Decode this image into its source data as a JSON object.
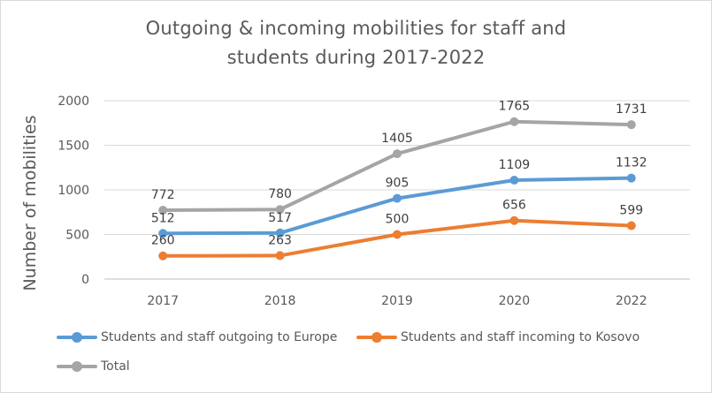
{
  "chart_data": {
    "type": "line",
    "title_lines": [
      "Outgoing & incoming mobilities for staff and",
      "students during 2017-2022"
    ],
    "xlabel": "",
    "ylabel": "Number of mobilities",
    "categories": [
      "2017",
      "2018",
      "2019",
      "2020",
      "2022"
    ],
    "ylim": [
      0,
      2000
    ],
    "yticks": [
      0,
      500,
      1000,
      1500,
      2000
    ],
    "grid": true,
    "legend_position": "bottom",
    "series": [
      {
        "name": "Students and staff outgoing to Europe",
        "color": "#5b9bd5",
        "values": [
          512,
          517,
          905,
          1109,
          1132
        ]
      },
      {
        "name": "Students and staff incoming to Kosovo",
        "color": "#ed7d31",
        "values": [
          260,
          263,
          500,
          656,
          599
        ]
      },
      {
        "name": "Total",
        "color": "#a5a5a5",
        "values": [
          772,
          780,
          1405,
          1765,
          1731
        ]
      }
    ]
  }
}
